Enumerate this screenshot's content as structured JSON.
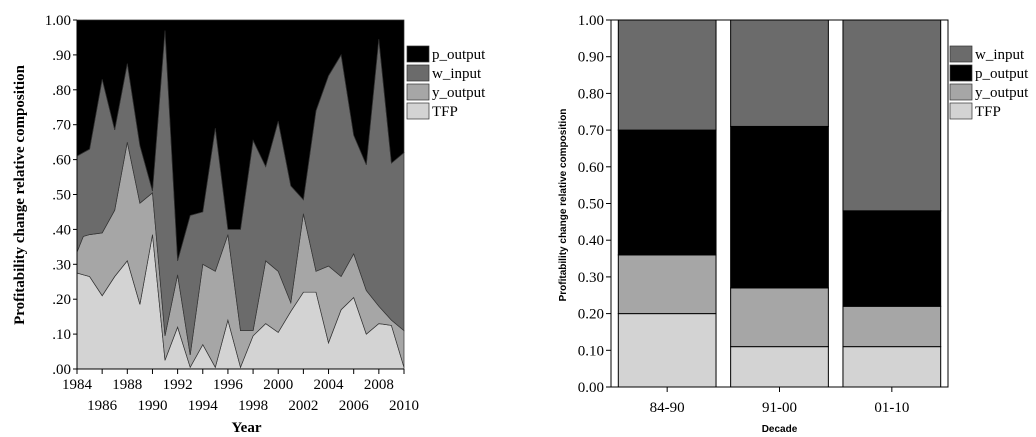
{
  "colors": {
    "TFP": "#d3d3d3",
    "y_output": "#a6a6a6",
    "w_input": "#6b6b6b",
    "p_output": "#000000",
    "background": "#ffffff",
    "axis": "#000000"
  },
  "chart_data": [
    {
      "type": "area",
      "stacked": true,
      "title": "",
      "xlabel": "Year",
      "ylabel": "Profitability change relative composition",
      "xlim": [
        1984,
        2010
      ],
      "ylim": [
        0,
        1
      ],
      "x_ticks_row1": [
        "1984",
        "1988",
        "1992",
        "1996",
        "2000",
        "2004",
        "2008"
      ],
      "x_ticks_row2": [
        "1986",
        "1990",
        "1994",
        "1998",
        "2002",
        "2006",
        "2010"
      ],
      "y_ticks": [
        ".00",
        ".10",
        ".20",
        ".30",
        ".40",
        ".50",
        ".60",
        ".70",
        ".80",
        ".90",
        "1.00"
      ],
      "legend_position": "right",
      "legend": [
        "p_output",
        "w_input",
        "y_output",
        "TFP"
      ],
      "x": [
        1984,
        1984.5,
        1985,
        1986,
        1987,
        1988,
        1989,
        1990,
        1991,
        1992,
        1993,
        1994,
        1995,
        1996,
        1997,
        1998,
        1999,
        2000,
        2001,
        2002,
        2003,
        2004,
        2005,
        2006,
        2007,
        2008,
        2009,
        2010
      ],
      "series": [
        {
          "name": "TFP",
          "values": [
            0.275,
            0.27,
            0.265,
            0.21,
            0.265,
            0.31,
            0.185,
            0.385,
            0.025,
            0.12,
            0.005,
            0.07,
            0.005,
            0.14,
            0.005,
            0.095,
            0.13,
            0.105,
            0.165,
            0.22,
            0.22,
            0.075,
            0.17,
            0.205,
            0.1,
            0.13,
            0.125,
            0.005
          ]
        },
        {
          "name": "y_output",
          "values": [
            0.06,
            0.11,
            0.12,
            0.18,
            0.19,
            0.34,
            0.29,
            0.12,
            0.07,
            0.15,
            0.035,
            0.23,
            0.275,
            0.245,
            0.105,
            0.015,
            0.18,
            0.175,
            0.025,
            0.225,
            0.06,
            0.22,
            0.095,
            0.125,
            0.125,
            0.05,
            0.015,
            0.105
          ]
        },
        {
          "name": "w_input",
          "values": [
            0.275,
            0.24,
            0.245,
            0.44,
            0.23,
            0.225,
            0.165,
            0.005,
            0.875,
            0.04,
            0.4,
            0.15,
            0.41,
            0.015,
            0.29,
            0.545,
            0.27,
            0.43,
            0.335,
            0.04,
            0.46,
            0.545,
            0.635,
            0.34,
            0.36,
            0.765,
            0.45,
            0.51
          ]
        },
        {
          "name": "p_output",
          "values": [
            0.39,
            0.38,
            0.37,
            0.17,
            0.315,
            0.125,
            0.36,
            0.49,
            0.03,
            0.69,
            0.56,
            0.55,
            0.31,
            0.6,
            0.6,
            0.345,
            0.42,
            0.29,
            0.475,
            0.515,
            0.26,
            0.16,
            0.1,
            0.33,
            0.415,
            0.055,
            0.41,
            0.38
          ]
        }
      ]
    },
    {
      "type": "bar",
      "stacked": true,
      "title": "",
      "xlabel": "Decade",
      "ylabel": "Profitability change relative composition",
      "categories": [
        "84-90",
        "91-00",
        "01-10"
      ],
      "ylim": [
        0,
        1
      ],
      "y_ticks": [
        "0.00",
        "0.10",
        "0.20",
        "0.30",
        "0.40",
        "0.50",
        "0.60",
        "0.70",
        "0.80",
        "0.90",
        "1.00"
      ],
      "legend_position": "right",
      "legend": [
        "w_input",
        "p_output",
        "y_output",
        "TFP"
      ],
      "series": [
        {
          "name": "TFP",
          "values": [
            0.2,
            0.11,
            0.11
          ]
        },
        {
          "name": "y_output",
          "values": [
            0.16,
            0.16,
            0.11
          ]
        },
        {
          "name": "p_output",
          "values": [
            0.34,
            0.44,
            0.26
          ]
        },
        {
          "name": "w_input",
          "values": [
            0.3,
            0.29,
            0.52
          ]
        }
      ]
    }
  ]
}
